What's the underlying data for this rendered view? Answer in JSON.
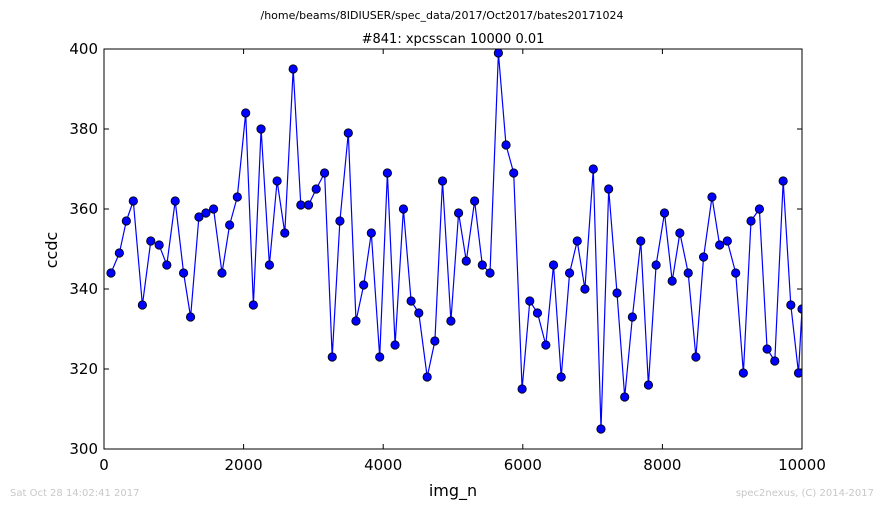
{
  "header": {
    "file_path": "/home/beams/8IDIUSER/spec_data/2017/Oct2017/bates20171024"
  },
  "footer": {
    "timestamp": "Sat Oct 28 14:02:41 2017",
    "credit": "spec2nexus, (C) 2014-2017"
  },
  "chart_data": {
    "type": "line",
    "title": "#841: xpcsscan 10000 0.01",
    "xlabel": "img_n",
    "ylabel": "ccdc",
    "xlim": [
      0,
      10000
    ],
    "ylim": [
      300,
      400
    ],
    "xticks": [
      0,
      2000,
      4000,
      6000,
      8000,
      10000
    ],
    "yticks": [
      300,
      320,
      340,
      360,
      380,
      400
    ],
    "grid": false,
    "color": "#0000ff",
    "marker": "circle",
    "series": [
      {
        "x": [
          100,
          220,
          320,
          420,
          550,
          670,
          790,
          900,
          1020,
          1140,
          1240,
          1360,
          1460,
          1570,
          1690,
          1800,
          1910,
          2030,
          2140,
          2250,
          2370,
          2480,
          2590,
          2710,
          2820,
          2930,
          3040,
          3160,
          3270,
          3380,
          3500,
          3610,
          3720,
          3830,
          3950,
          4060,
          4170,
          4290,
          4400,
          4510,
          4630,
          4740,
          4850,
          4970,
          5080,
          5190,
          5310,
          5420,
          5530,
          5650,
          5760,
          5870,
          5990,
          6100,
          6210,
          6330,
          6440,
          6550,
          6670,
          6780,
          6890,
          7010,
          7120,
          7230,
          7350,
          7460,
          7570,
          7690,
          7800,
          7910,
          8030,
          8140,
          8250,
          8370,
          8480,
          8590,
          8710,
          8820,
          8930,
          9050,
          9160,
          9270,
          9390,
          9500,
          9610,
          9730,
          9840,
          9950,
          10000
        ],
        "y": [
          344,
          349,
          357,
          362,
          336,
          352,
          351,
          346,
          362,
          344,
          333,
          358,
          359,
          360,
          344,
          356,
          363,
          384,
          336,
          380,
          346,
          367,
          354,
          395,
          361,
          361,
          365,
          369,
          323,
          357,
          379,
          332,
          341,
          354,
          323,
          369,
          326,
          360,
          337,
          334,
          318,
          327,
          367,
          332,
          359,
          347,
          362,
          346,
          344,
          399,
          376,
          369,
          315,
          337,
          334,
          326,
          346,
          318,
          344,
          352,
          340,
          370,
          305,
          365,
          339,
          313,
          333,
          352,
          316,
          346,
          359,
          342,
          354,
          344,
          323,
          348,
          363,
          351,
          352,
          344,
          319,
          357,
          360,
          325,
          322,
          367,
          336,
          319,
          335
        ]
      }
    ]
  }
}
